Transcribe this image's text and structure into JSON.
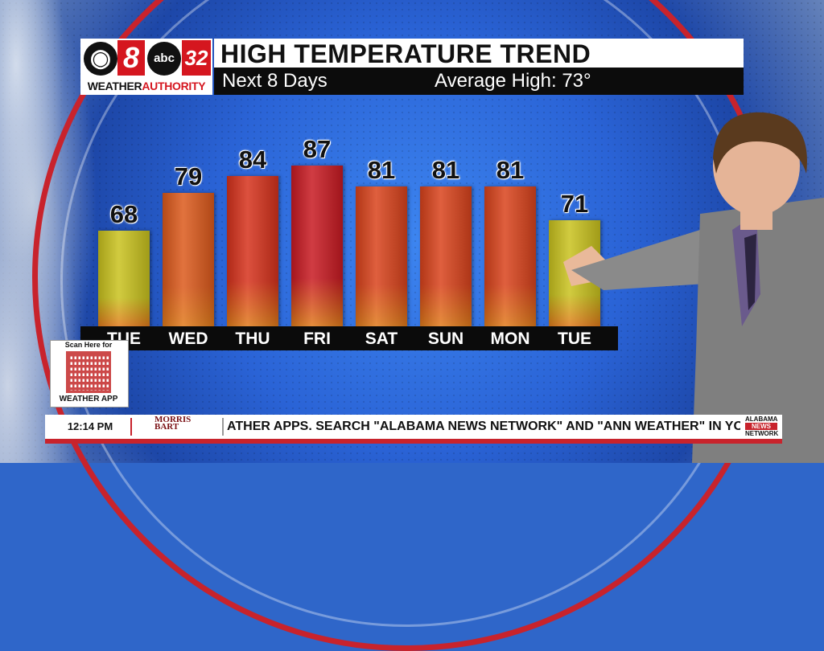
{
  "header": {
    "logo_cbs": "8",
    "logo_abc": "abc",
    "logo_32": "32",
    "logo_weather": "WEATHER",
    "logo_authority": "AUTHORITY",
    "title": "HIGH TEMPERATURE TREND",
    "subtitle_left": "Next 8 Days",
    "subtitle_right": "Average High: 73°"
  },
  "chart_data": {
    "type": "bar",
    "title": "HIGH TEMPERATURE TREND",
    "categories": [
      "TUE",
      "WED",
      "THU",
      "FRI",
      "SAT",
      "SUN",
      "MON",
      "TUE"
    ],
    "values": [
      68,
      79,
      84,
      87,
      81,
      81,
      81,
      71
    ],
    "bar_colors": [
      "#c9c21e",
      "#dc5a1c",
      "#d6321c",
      "#c81a22",
      "#d9431c",
      "#d9431c",
      "#d9431c",
      "#c9c21e"
    ],
    "xlabel": "",
    "ylabel": "",
    "grid": false
  },
  "qr": {
    "top_text": "Scan Here for",
    "bottom_text": "WEATHER APP"
  },
  "ticker": {
    "time": "12:14 PM",
    "sponsor_line1": "MORRIS",
    "sponsor_line2": "BART",
    "text": "ATHER APPS. SEARCH \"ALABAMA NEWS NETWORK\" AND \"ANN WEATHER\" IN YO",
    "network_line1": "ALABAMA",
    "network_line2": "NEWS",
    "network_line3": "NETWORK"
  }
}
